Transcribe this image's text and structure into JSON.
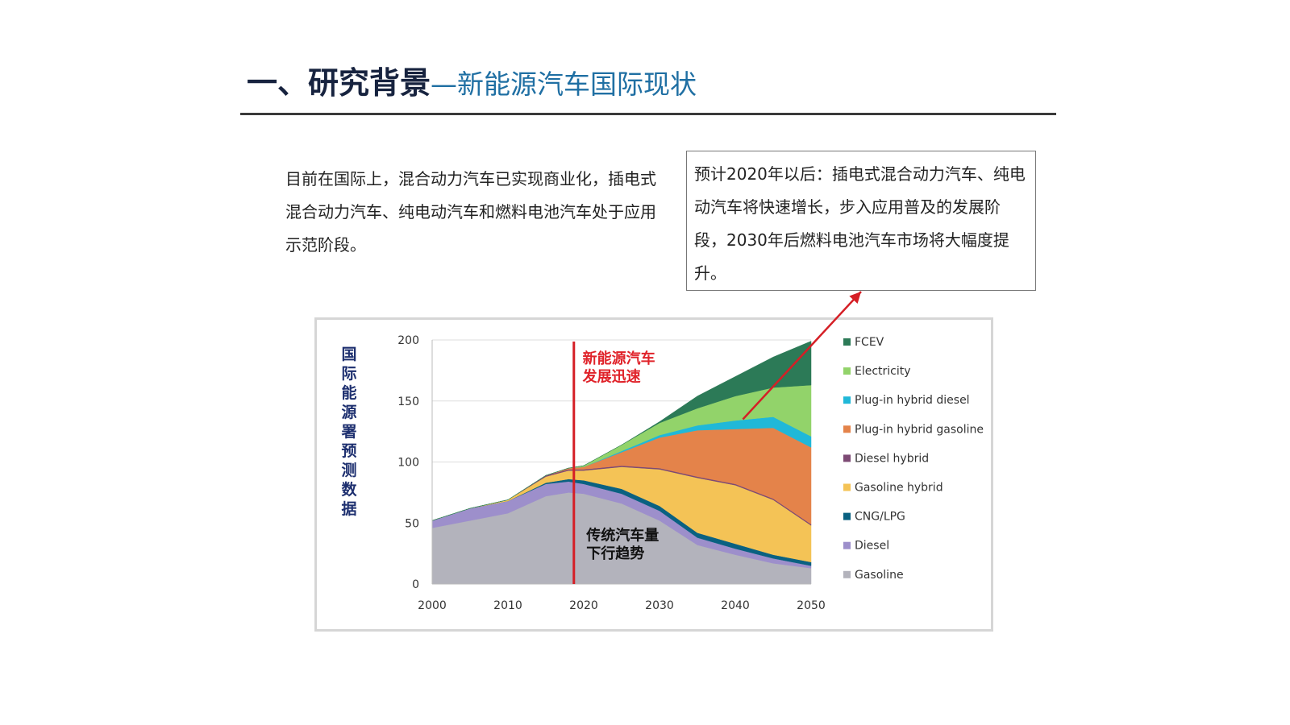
{
  "slide": {
    "title_main": "一、研究背景",
    "title_sub": "—新能源汽车国际现状",
    "intro_text": "目前在国际上，混合动力汽车已实现商业化，插电式混合动力汽车、纯电动汽车和燃料电池汽车处于应用示范阶段。",
    "note_text": "预计2020年以后：插电式混合动力汽车、纯电动汽车将快速增长，步入应用普及的发展阶段，2030年后燃料电池汽车市场将大幅度提升。",
    "vertical_label": "国际能源署预测数据"
  },
  "chart_data": {
    "type": "area",
    "stacked": true,
    "x": [
      2000,
      2005,
      2010,
      2015,
      2018,
      2020,
      2025,
      2030,
      2035,
      2040,
      2045,
      2050
    ],
    "xticks": [
      2000,
      2010,
      2020,
      2030,
      2040,
      2050
    ],
    "yticks": [
      0,
      50,
      100,
      150,
      200
    ],
    "ylim": [
      0,
      200
    ],
    "xlim": [
      2000,
      2050
    ],
    "grid": "horizontal",
    "legend_position": "right",
    "series": [
      {
        "name": "Gasoline",
        "color": "#b3b3bc",
        "values": [
          46,
          52,
          58,
          72,
          75,
          74,
          66,
          52,
          32,
          24,
          17,
          13
        ]
      },
      {
        "name": "Diesel",
        "color": "#9d8fcb",
        "values": [
          6,
          10,
          10,
          10,
          9,
          8,
          8,
          8,
          6,
          5,
          4,
          2
        ]
      },
      {
        "name": "CNG/LPG",
        "color": "#0a6181",
        "values": [
          0,
          0,
          0,
          1,
          2,
          3,
          4,
          4,
          4,
          4,
          3,
          3
        ]
      },
      {
        "name": "Gasoline hybrid",
        "color": "#f4c356",
        "values": [
          0,
          0,
          1,
          5,
          7,
          8,
          18,
          30,
          45,
          48,
          45,
          30
        ]
      },
      {
        "name": "Diesel hybrid",
        "color": "#7d4a74",
        "values": [
          0,
          0,
          0,
          1,
          1,
          1,
          1,
          1,
          1,
          1,
          1,
          1
        ]
      },
      {
        "name": "Plug-in hybrid gasoline",
        "color": "#e4834a",
        "values": [
          0,
          0,
          0,
          0,
          1,
          2,
          11,
          25,
          38,
          45,
          58,
          63
        ]
      },
      {
        "name": "Plug-in hybrid diesel",
        "color": "#20b8d8",
        "values": [
          0,
          0,
          0,
          0,
          0,
          0,
          1,
          2,
          4,
          7,
          9,
          9
        ]
      },
      {
        "name": "Electricity",
        "color": "#92d36a",
        "values": [
          0,
          0,
          0,
          0,
          0,
          1,
          5,
          10,
          14,
          20,
          24,
          42
        ]
      },
      {
        "name": "FCEV",
        "color": "#2c7a57",
        "values": [
          0,
          0,
          0,
          0,
          0,
          0,
          0,
          1,
          10,
          16,
          25,
          36
        ]
      }
    ],
    "annotations": [
      {
        "text": "新能源汽车",
        "x": 2019,
        "y": 181,
        "color": "#e0232a"
      },
      {
        "text": "发展迅速",
        "x": 2019,
        "y": 166,
        "color": "#e0232a"
      },
      {
        "text": "传统汽车量",
        "x": 2019.5,
        "y": 36,
        "color": "#111111"
      },
      {
        "text": "下行趋势",
        "x": 2019.5,
        "y": 21,
        "color": "#111111"
      }
    ],
    "marker_line": {
      "x": 2018.7,
      "color": "#d51f26"
    },
    "arrow": {
      "from_x": 2041,
      "from_y": 135,
      "color": "#d51f26"
    }
  }
}
